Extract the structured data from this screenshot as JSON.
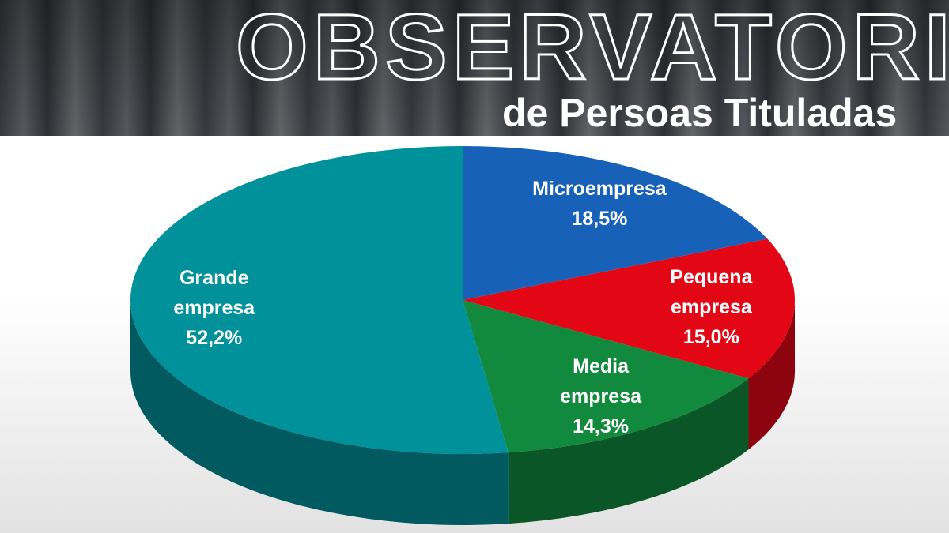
{
  "chart_data": {
    "type": "pie",
    "title": "OBSERVATORIO",
    "subtitle": "de Persoas Tituladas",
    "categories": [
      "Microempresa",
      "Pequena empresa",
      "Media empresa",
      "Grande empresa"
    ],
    "values": [
      18.5,
      15.0,
      14.3,
      52.2
    ],
    "value_labels": [
      "18,5%",
      "15,0%",
      "14,3%",
      "52,2%"
    ],
    "colors": [
      "#1762b8",
      "#e30716",
      "#128a3e",
      "#00919b"
    ]
  }
}
